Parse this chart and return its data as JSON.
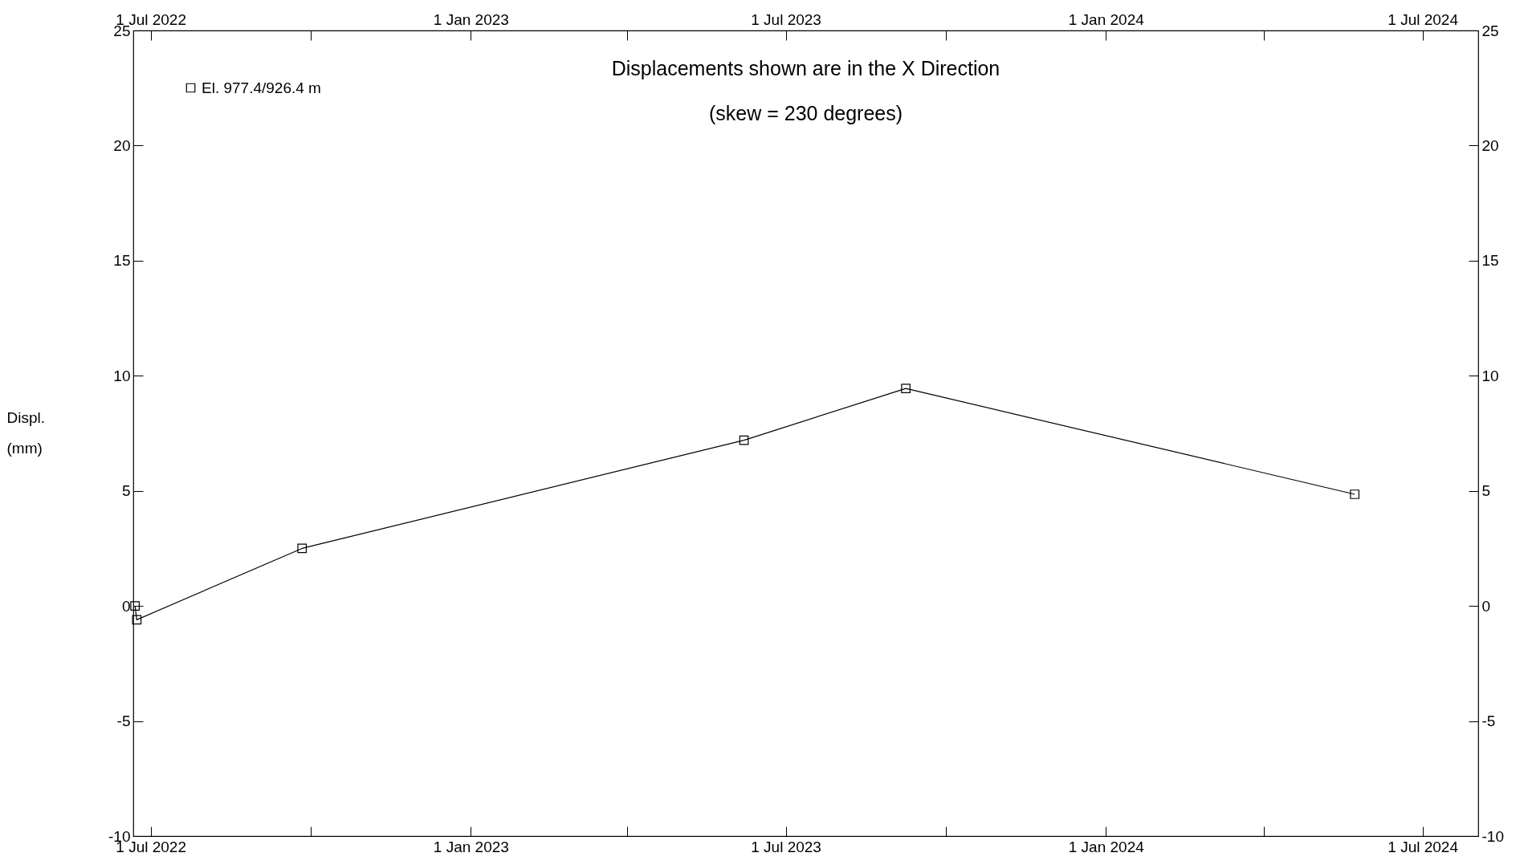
{
  "chart_data": {
    "type": "line",
    "title": "Displacements shown are in the  X Direction",
    "subtitle": "(skew = 230 degrees)",
    "ylabel": "Displ. (mm)",
    "x": [
      "2022-06-22",
      "2022-06-23",
      "2022-09-26",
      "2023-06-07",
      "2023-09-08",
      "2024-05-23"
    ],
    "series": [
      {
        "name": "El. 977.4/926.4 m",
        "color": "#000000",
        "values": [
          0,
          -0.6,
          2.5,
          7.2,
          9.45,
          4.85
        ]
      }
    ],
    "xlim": [
      "2022-06-21",
      "2024-08-02"
    ],
    "xticks": [
      {
        "value": "2022-07-01",
        "label": "1 Jul 2022"
      },
      {
        "value": "2022-10-01",
        "label": null
      },
      {
        "value": "2023-01-01",
        "label": "1 Jan 2023"
      },
      {
        "value": "2023-04-01",
        "label": null
      },
      {
        "value": "2023-07-01",
        "label": "1 Jul 2023"
      },
      {
        "value": "2023-10-01",
        "label": null
      },
      {
        "value": "2024-01-01",
        "label": "1 Jan 2024"
      },
      {
        "value": "2024-04-01",
        "label": null
      },
      {
        "value": "2024-07-01",
        "label": "1 Jul 2024"
      }
    ],
    "x2lim": [
      "2022-06-21",
      "2024-08-02"
    ],
    "x2ticks": [
      {
        "value": "2022-07-01",
        "label": "1 Jul 2022"
      },
      {
        "value": "2022-10-01",
        "label": null
      },
      {
        "value": "2023-01-01",
        "label": "1 Jan 2023"
      },
      {
        "value": "2023-04-01",
        "label": null
      },
      {
        "value": "2023-07-01",
        "label": "1 Jul 2023"
      },
      {
        "value": "2023-10-01",
        "label": null
      },
      {
        "value": "2024-01-01",
        "label": "1 Jan 2024"
      },
      {
        "value": "2024-04-01",
        "label": null
      },
      {
        "value": "2024-07-01",
        "label": "1 Jul 2024"
      }
    ],
    "ylim": [
      -10,
      25
    ],
    "yticks": [
      -10,
      -5,
      0,
      5,
      10,
      15,
      20,
      25
    ],
    "y2lim": [
      -10,
      25
    ],
    "y2ticks": [
      -10,
      -5,
      0,
      5,
      10,
      15,
      20,
      25
    ],
    "legend": "top left",
    "marker": "square",
    "line_style": "solid",
    "grid": false
  }
}
